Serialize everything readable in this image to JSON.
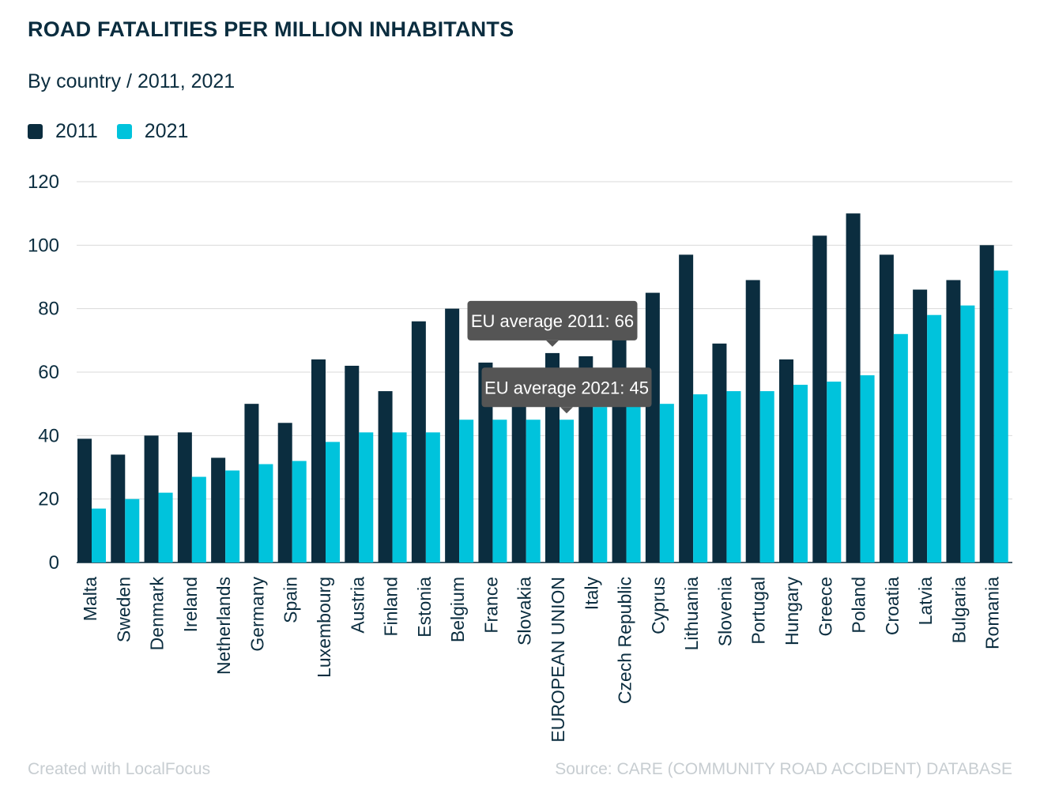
{
  "header": {
    "title": "ROAD FATALITIES PER MILLION INHABITANTS",
    "subtitle": "By country / 2011, 2021"
  },
  "footer": {
    "credit": "Created with LocalFocus",
    "source": "Source:  CARE (COMMUNITY ROAD ACCIDENT) DATABASE"
  },
  "colors": {
    "series_2011": "#0b2d3f",
    "series_2021": "#00c3dc",
    "grid": "#d9d9d9",
    "text": "#0b2d3f",
    "tooltip": "#555555"
  },
  "chart_data": {
    "type": "bar",
    "title": "ROAD FATALITIES PER MILLION INHABITANTS",
    "subtitle": "By country / 2011, 2021",
    "xlabel": "",
    "ylabel": "",
    "ylim": [
      0,
      120
    ],
    "yticks": [
      0,
      20,
      40,
      60,
      80,
      100,
      120
    ],
    "grid": true,
    "legend": "top-left",
    "categories": [
      "Malta",
      "Sweden",
      "Denmark",
      "Ireland",
      "Netherlands",
      "Germany",
      "Spain",
      "Luxembourg",
      "Austria",
      "Finland",
      "Estonia",
      "Belgium",
      "France",
      "Slovakia",
      "EUROPEAN UNION",
      "Italy",
      "Czech Republic",
      "Cyprus",
      "Lithuania",
      "Slovenia",
      "Portugal",
      "Hungary",
      "Greece",
      "Poland",
      "Croatia",
      "Latvia",
      "Bulgaria",
      "Romania"
    ],
    "series": [
      {
        "name": "2011",
        "values": [
          39,
          34,
          40,
          41,
          33,
          50,
          44,
          64,
          62,
          54,
          76,
          80,
          63,
          57,
          66,
          65,
          74,
          85,
          97,
          69,
          89,
          64,
          103,
          110,
          97,
          86,
          89,
          100
        ]
      },
      {
        "name": "2021",
        "values": [
          17,
          20,
          22,
          27,
          29,
          31,
          32,
          38,
          41,
          41,
          41,
          45,
          45,
          45,
          45,
          49,
          50,
          50,
          53,
          54,
          54,
          56,
          57,
          59,
          72,
          78,
          81,
          92
        ]
      }
    ],
    "annotations": [
      {
        "text": "EU average 2011: 66",
        "category": "EUROPEAN UNION",
        "series": "2011",
        "value": 66
      },
      {
        "text": "EU average 2021: 45",
        "category": "EUROPEAN UNION",
        "series": "2021",
        "value": 45
      }
    ]
  }
}
